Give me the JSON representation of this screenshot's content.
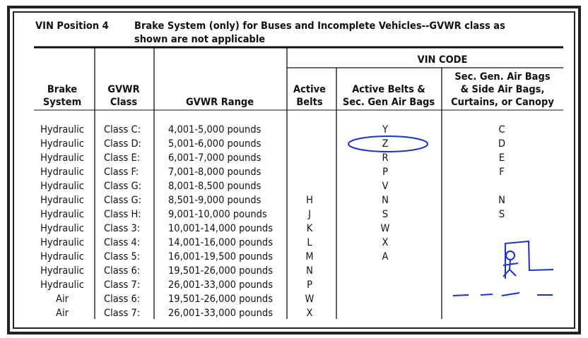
{
  "header": {
    "position": "VIN Position 4",
    "title_lines": [
      "Brake System (only) for Buses and Incomplete Vehicles--GVWR class as",
      "shown are not applicable"
    ]
  },
  "table": {
    "group_header": "VIN CODE",
    "columns": [
      [
        "Brake",
        "System"
      ],
      [
        "GVWR",
        "Class"
      ],
      [
        "GVWR Range"
      ],
      [
        "Active",
        "Belts"
      ],
      [
        "Active Belts &",
        "Sec. Gen Air Bags"
      ],
      [
        "Sec. Gen. Air Bags",
        "& Side Air Bags,",
        "Curtains, or Canopy"
      ]
    ],
    "rows": [
      [
        "Hydraulic",
        "Class C:",
        "4,001-5,000 pounds",
        null,
        "Y",
        "C"
      ],
      [
        "Hydraulic",
        "Class D:",
        "5,001-6,000 pounds",
        null,
        "Z",
        "D"
      ],
      [
        "Hydraulic",
        "Class E:",
        "6,001-7,000 pounds",
        null,
        "R",
        "E"
      ],
      [
        "Hydraulic",
        "Class F:",
        "7,001-8,000 pounds",
        null,
        "P",
        "F"
      ],
      [
        "Hydraulic",
        "Class G:",
        "8,001-8,500 pounds",
        null,
        "V",
        null
      ],
      [
        "Hydraulic",
        "Class G:",
        "8,501-9,000 pounds",
        "H",
        "N",
        "N"
      ],
      [
        "Hydraulic",
        "Class H:",
        "9,001-10,000 pounds",
        "J",
        "S",
        "S"
      ],
      [
        "Hydraulic",
        "Class 3:",
        "10,001-14,000 pounds",
        "K",
        "W",
        null
      ],
      [
        "Hydraulic",
        "Class 4:",
        "14,001-16,000 pounds",
        "L",
        "X",
        null
      ],
      [
        "Hydraulic",
        "Class 5:",
        "16,001-19,500 pounds",
        "M",
        "A",
        null
      ],
      [
        "Hydraulic",
        "Class 6:",
        "19,501-26,000 pounds",
        "N",
        null,
        null
      ],
      [
        "Hydraulic",
        "Class 7:",
        "26,001-33,000 pounds",
        "P",
        null,
        null
      ],
      [
        "Air",
        "Class 6:",
        "19,501-26,000 pounds",
        "W",
        null,
        null
      ],
      [
        "Air",
        "Class 7:",
        "26,001-33,000 pounds",
        "X",
        null,
        null
      ]
    ]
  }
}
